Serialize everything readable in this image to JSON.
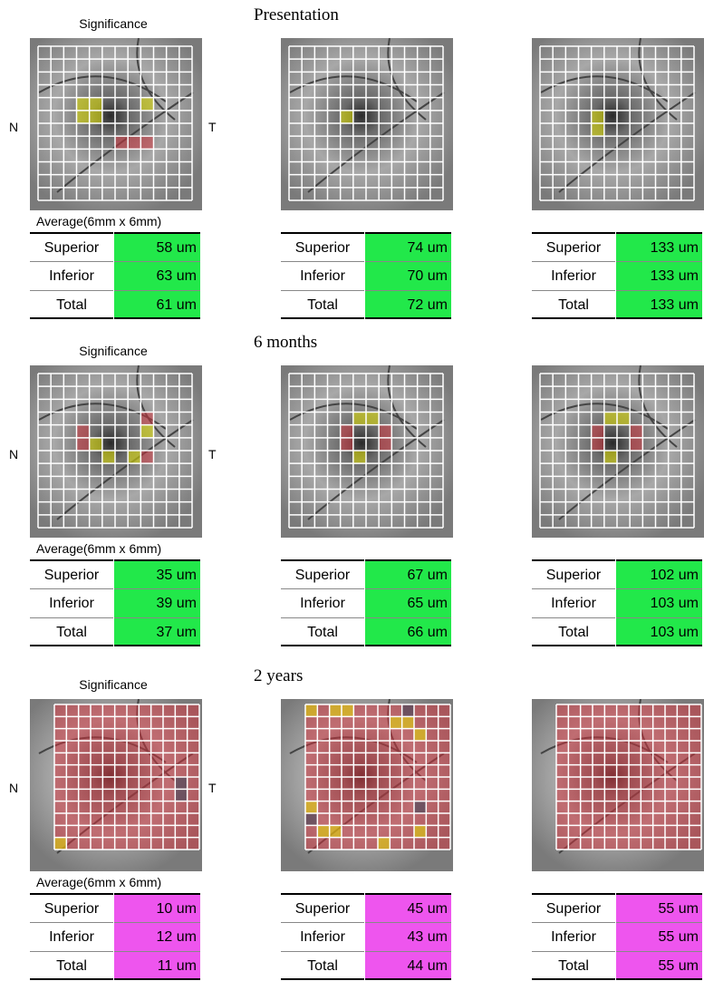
{
  "sections": [
    {
      "title": "Presentation",
      "significance": "Significance",
      "nasal": "N",
      "temporal": "T",
      "average": "Average(6mm x 6mm)",
      "value_color": "#22e84a",
      "panels": [
        {
          "rows": [
            {
              "label": "Superior",
              "value": "58 um"
            },
            {
              "label": "Inferior",
              "value": "63 um"
            },
            {
              "label": "Total",
              "value": "61 um"
            }
          ]
        },
        {
          "rows": [
            {
              "label": "Superior",
              "value": "74 um"
            },
            {
              "label": "Inferior",
              "value": "70 um"
            },
            {
              "label": "Total",
              "value": "72 um"
            }
          ]
        },
        {
          "rows": [
            {
              "label": "Superior",
              "value": "133 um"
            },
            {
              "label": "Inferior",
              "value": "133 um"
            },
            {
              "label": "Total",
              "value": "133 um"
            }
          ]
        }
      ]
    },
    {
      "title": "6 months",
      "significance": "Significance",
      "nasal": "N",
      "temporal": "T",
      "average": "Average(6mm x 6mm)",
      "value_color": "#22e84a",
      "panels": [
        {
          "rows": [
            {
              "label": "Superior",
              "value": "35 um"
            },
            {
              "label": "Inferior",
              "value": "39 um"
            },
            {
              "label": "Total",
              "value": "37 um"
            }
          ]
        },
        {
          "rows": [
            {
              "label": "Superior",
              "value": "67 um"
            },
            {
              "label": "Inferior",
              "value": "65 um"
            },
            {
              "label": "Total",
              "value": "66 um"
            }
          ]
        },
        {
          "rows": [
            {
              "label": "Superior",
              "value": "102 um"
            },
            {
              "label": "Inferior",
              "value": "103 um"
            },
            {
              "label": "Total",
              "value": "103 um"
            }
          ]
        }
      ]
    },
    {
      "title": "2 years",
      "significance": "Significance",
      "nasal": "N",
      "temporal": "T",
      "average": "Average(6mm x 6mm)",
      "value_color": "#ee55ee",
      "panels": [
        {
          "rows": [
            {
              "label": "Superior",
              "value": "10 um"
            },
            {
              "label": "Inferior",
              "value": "12 um"
            },
            {
              "label": "Total",
              "value": "11 um"
            }
          ]
        },
        {
          "rows": [
            {
              "label": "Superior",
              "value": "45 um"
            },
            {
              "label": "Inferior",
              "value": "43 um"
            },
            {
              "label": "Total",
              "value": "44 um"
            }
          ]
        },
        {
          "rows": [
            {
              "label": "Superior",
              "value": "55 um"
            },
            {
              "label": "Inferior",
              "value": "55 um"
            },
            {
              "label": "Total",
              "value": "55 um"
            }
          ]
        }
      ]
    }
  ]
}
